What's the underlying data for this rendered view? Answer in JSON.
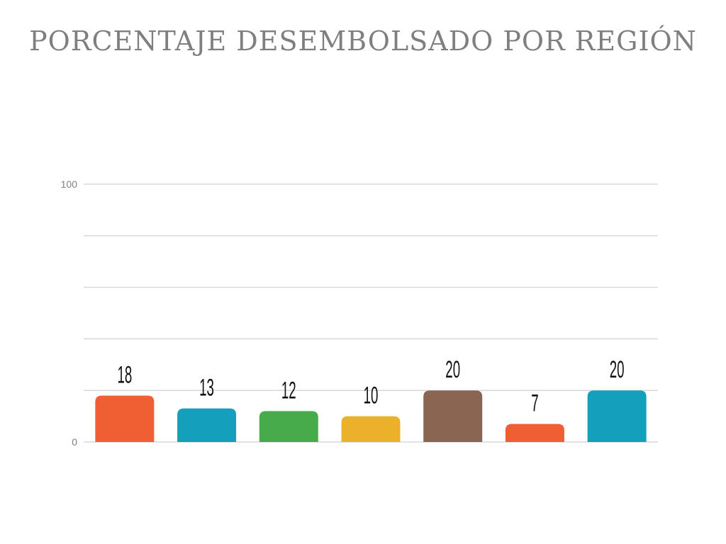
{
  "title": "PORCENTAJE DESEMBOLSADO POR REGIÓN",
  "chart_data": {
    "type": "bar",
    "title": "PORCENTAJE DESEMBOLSADO POR REGIÓN",
    "categories": [
      "",
      "",
      "",
      "",
      "",
      "",
      ""
    ],
    "values": [
      18,
      13,
      12,
      10,
      20,
      7,
      20
    ],
    "colors": [
      "#f05f33",
      "#149fbd",
      "#47ab4b",
      "#ecb12a",
      "#8a6551",
      "#f05f33",
      "#149fbd"
    ],
    "ylim": [
      0,
      100
    ],
    "yticks": [
      0,
      20,
      40,
      60,
      80,
      100
    ],
    "ytick_labels": [
      "0",
      "",
      "",
      "",
      "",
      "100"
    ],
    "grid": true,
    "xlabel": "",
    "ylabel": ""
  }
}
